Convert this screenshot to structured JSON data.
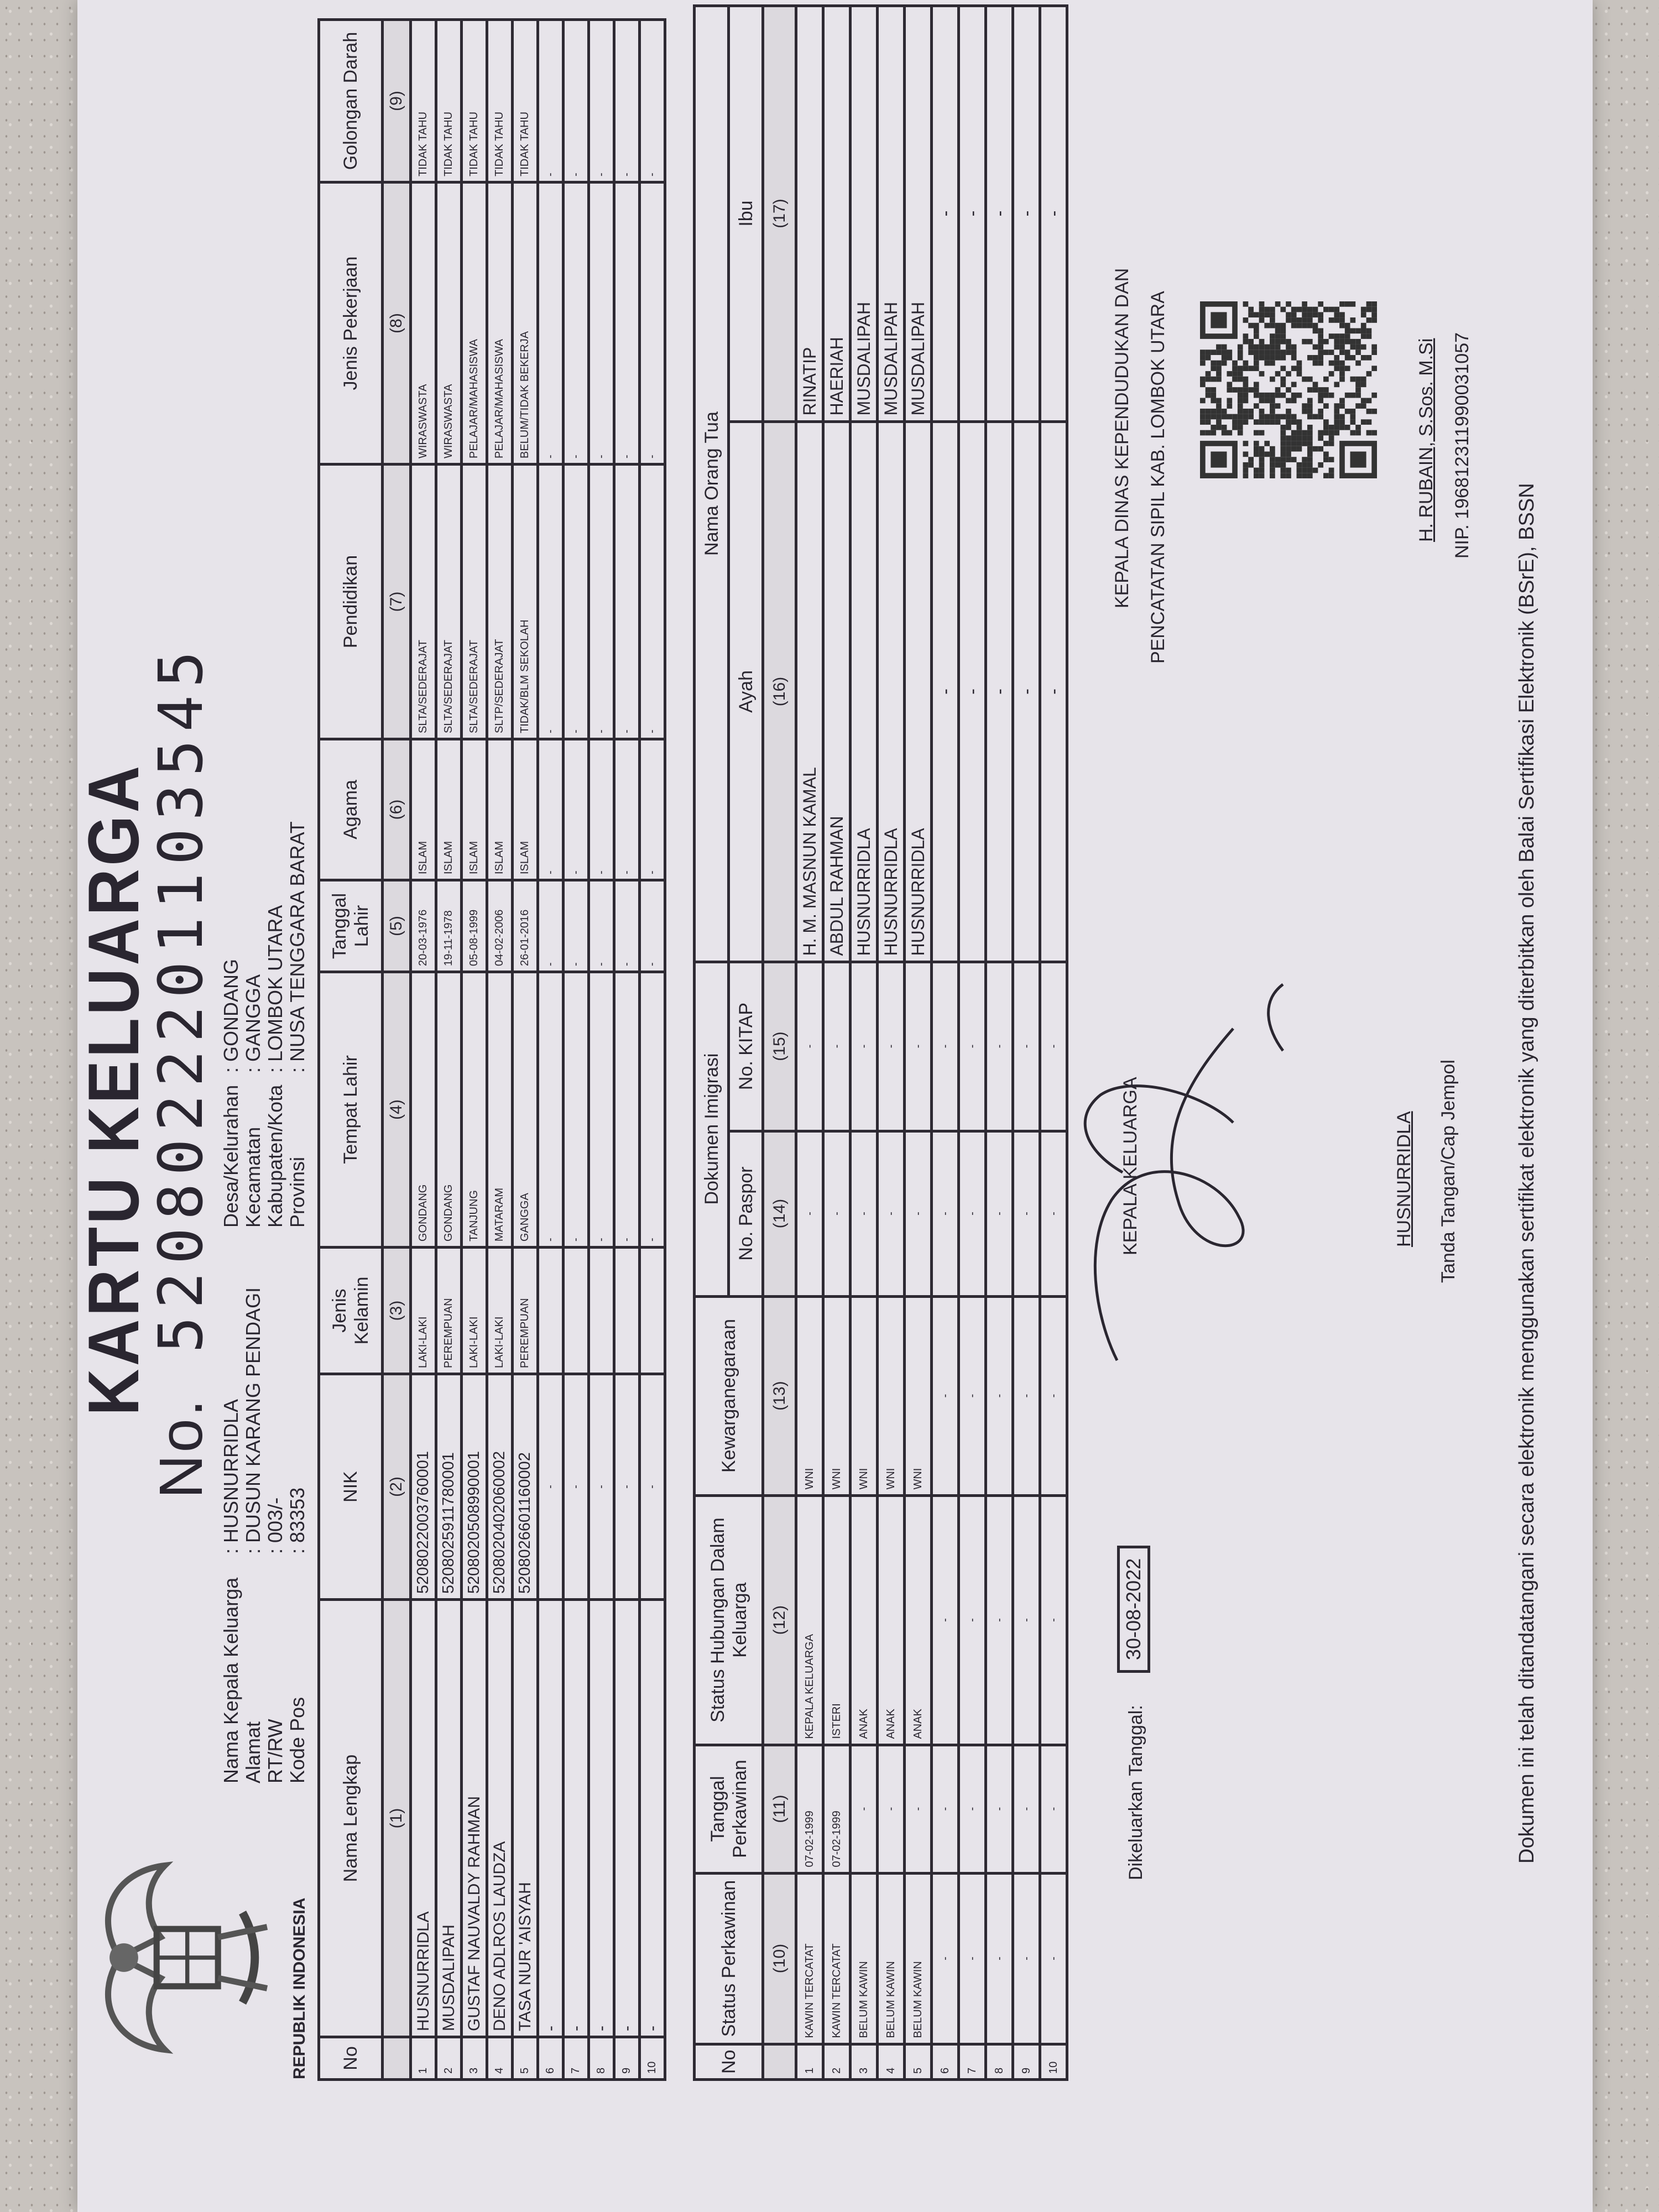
{
  "document": {
    "title": "KARTU KELUARGA",
    "number_label": "No.",
    "number": "5208022201103545",
    "emblem_text": "REPUBLIK INDONESIA",
    "left_fields": [
      {
        "label": "Nama Kepala Keluarga",
        "value": ": HUSNURRIDLA"
      },
      {
        "label": "Alamat",
        "value": ": DUSUN KARANG PENDAGI"
      },
      {
        "label": "RT/RW",
        "value": ": 003/-"
      },
      {
        "label": "Kode Pos",
        "value": ": 83353"
      }
    ],
    "right_fields": [
      {
        "label": "Desa/Kelurahan",
        "value": ": GONDANG"
      },
      {
        "label": "Kecamatan",
        "value": ": GANGGA"
      },
      {
        "label": "Kabupaten/Kota",
        "value": ": LOMBOK UTARA"
      },
      {
        "label": "Provinsi",
        "value": ": NUSA TENGGARA BARAT"
      }
    ]
  },
  "table1": {
    "headers": [
      "No",
      "Nama Lengkap",
      "NIK",
      "Jenis Kelamin",
      "Tempat Lahir",
      "Tanggal Lahir",
      "Agama",
      "Pendidikan",
      "Jenis Pekerjaan",
      "Golongan Darah"
    ],
    "col_numbers": [
      "",
      "(1)",
      "(2)",
      "(3)",
      "(4)",
      "(5)",
      "(6)",
      "(7)",
      "(8)",
      "(9)"
    ],
    "rows": [
      [
        "1",
        "HUSNURRIDLA",
        "5208022003760001",
        "LAKI-LAKI",
        "GONDANG",
        "20-03-1976",
        "ISLAM",
        "SLTA/SEDERAJAT",
        "WIRASWASTA",
        "TIDAK TAHU"
      ],
      [
        "2",
        "MUSDALIPAH",
        "5208025911780001",
        "PEREMPUAN",
        "GONDANG",
        "19-11-1978",
        "ISLAM",
        "SLTA/SEDERAJAT",
        "WIRASWASTA",
        "TIDAK TAHU"
      ],
      [
        "3",
        "GUSTAF NAUVALDY RAHMAN",
        "5208020508990001",
        "LAKI-LAKI",
        "TANJUNG",
        "05-08-1999",
        "ISLAM",
        "SLTA/SEDERAJAT",
        "PELAJAR/MAHASISWA",
        "TIDAK TAHU"
      ],
      [
        "4",
        "DENO ADLROS LAUDZA",
        "5208020402060002",
        "LAKI-LAKI",
        "MATARAM",
        "04-02-2006",
        "ISLAM",
        "SLTP/SEDERAJAT",
        "PELAJAR/MAHASISWA",
        "TIDAK TAHU"
      ],
      [
        "5",
        "TASA NUR 'AISYAH",
        "5208026601160002",
        "PEREMPUAN",
        "GANGGA",
        "26-01-2016",
        "ISLAM",
        "TIDAK/BLM SEKOLAH",
        "BELUM/TIDAK BEKERJA",
        "TIDAK TAHU"
      ],
      [
        "6",
        "-",
        "-",
        "",
        "-",
        "-",
        "-",
        "-",
        "-",
        "-"
      ],
      [
        "7",
        "-",
        "-",
        "",
        "-",
        "-",
        "-",
        "-",
        "-",
        "-"
      ],
      [
        "8",
        "-",
        "-",
        "",
        "-",
        "-",
        "-",
        "-",
        "-",
        "-"
      ],
      [
        "9",
        "-",
        "-",
        "",
        "-",
        "-",
        "-",
        "-",
        "-",
        "-"
      ],
      [
        "10",
        "-",
        "-",
        "",
        "-",
        "-",
        "-",
        "-",
        "-",
        "-"
      ]
    ]
  },
  "table2": {
    "headers": {
      "no": "No",
      "status_perkawinan": "Status Perkawinan",
      "tanggal_perkawinan": "Tanggal Perkawinan",
      "status_hubungan": "Status Hubungan Dalam Keluarga",
      "kewarganegaraan": "Kewarganegaraan",
      "dokumen_imigrasi": "Dokumen Imigrasi",
      "no_paspor": "No. Paspor",
      "no_kitap": "No. KITAP",
      "nama_orang_tua": "Nama Orang Tua",
      "ayah": "Ayah",
      "ibu": "Ibu"
    },
    "col_numbers": [
      "",
      "(10)",
      "(11)",
      "(12)",
      "(13)",
      "(14)",
      "(15)",
      "(16)",
      "(17)"
    ],
    "rows": [
      [
        "1",
        "KAWIN TERCATAT",
        "07-02-1999",
        "KEPALA KELUARGA",
        "WNI",
        "-",
        "-",
        "H. M. MASNUN KAMAL",
        "RINATIP"
      ],
      [
        "2",
        "KAWIN TERCATAT",
        "07-02-1999",
        "ISTERI",
        "WNI",
        "-",
        "-",
        "ABDUL RAHMAN",
        "HAERIAH"
      ],
      [
        "3",
        "BELUM KAWIN",
        "-",
        "ANAK",
        "WNI",
        "-",
        "-",
        "HUSNURRIDLA",
        "MUSDALIPAH"
      ],
      [
        "4",
        "BELUM KAWIN",
        "-",
        "ANAK",
        "WNI",
        "-",
        "-",
        "HUSNURRIDLA",
        "MUSDALIPAH"
      ],
      [
        "5",
        "BELUM KAWIN",
        "-",
        "ANAK",
        "WNI",
        "-",
        "-",
        "HUSNURRIDLA",
        "MUSDALIPAH"
      ],
      [
        "6",
        "-",
        "-",
        "-",
        "-",
        "-",
        "-",
        "-",
        "-"
      ],
      [
        "7",
        "-",
        "-",
        "-",
        "-",
        "-",
        "-",
        "-",
        "-"
      ],
      [
        "8",
        "-",
        "-",
        "-",
        "-",
        "-",
        "-",
        "-",
        "-"
      ],
      [
        "9",
        "-",
        "-",
        "-",
        "-",
        "-",
        "-",
        "-",
        "-"
      ],
      [
        "10",
        "-",
        "-",
        "-",
        "-",
        "-",
        "-",
        "-",
        "-"
      ]
    ]
  },
  "footer": {
    "issued_label": "Dikeluarkan Tanggal:",
    "issued_date": "30-08-2022",
    "head_title": "KEPALA KELUARGA",
    "head_name": "HUSNURRIDLA",
    "head_sign_caption": "Tanda Tangan/Cap Jempol",
    "office_line1": "KEPALA DINAS KEPENDUDUKAN DAN",
    "office_line2": "PENCATATAN SIPIL KAB. LOMBOK UTARA",
    "official_name": "H. RUBAIN, S.Sos. M.Si",
    "official_nip": "NIP. 196812311990031057",
    "disclaimer": "Dokumen ini telah ditandatangani secara elektronik menggunakan sertifikat elektronik yang diterbitkan oleh Balai Sertifikasi Elektronik (BSrE), BSSN"
  }
}
